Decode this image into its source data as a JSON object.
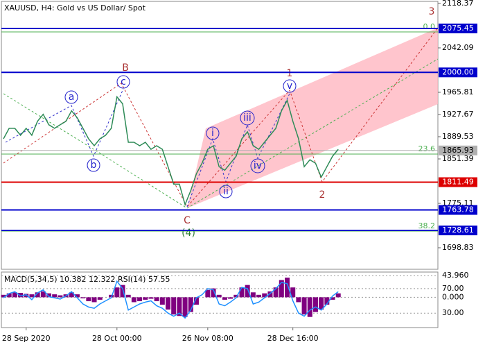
{
  "chart_data": {
    "type": "line",
    "title": "XAUUSD, H4:  Gold vs US Dollar/ Spot",
    "categories": [
      null,
      null,
      null,
      null,
      "28 Sep 2020",
      null,
      null,
      null,
      null,
      null,
      null,
      null,
      null,
      null,
      null,
      null,
      null,
      null,
      null,
      null,
      "28 Oct 00:00",
      null,
      null,
      null,
      null,
      null,
      null,
      null,
      null,
      null,
      null,
      null,
      null,
      null,
      null,
      null,
      "26 Nov 08:00",
      null,
      null,
      null,
      null,
      null,
      null,
      null,
      null,
      null,
      null,
      null,
      null,
      null,
      null,
      "28 Dec 16:00",
      null,
      null,
      null,
      null,
      null,
      null,
      null,
      null
    ],
    "values": [
      1886,
      1904,
      1904,
      1892,
      1904,
      1892,
      1916,
      1928,
      1910,
      1904,
      1910,
      1916,
      1934,
      1922,
      1904,
      1886,
      1874,
      1886,
      1892,
      1904,
      1958,
      1946,
      1880,
      1880,
      1874,
      1880,
      1868,
      1874,
      1868,
      1838,
      1808,
      1808,
      1773,
      1797,
      1826,
      1844,
      1868,
      1874,
      1838,
      1832,
      1844,
      1856,
      1886,
      1898,
      1874,
      1868,
      1880,
      1892,
      1904,
      1934,
      1952,
      1916,
      1886,
      1838,
      1850,
      1844,
      1820,
      1838,
      1856,
      1868
    ],
    "color": "#2e8b57",
    "ylim": [
      1661.9,
      2124.3
    ],
    "yticks": [
      2118.37,
      2042.09,
      1965.81,
      1927.67,
      1889.53,
      1851.39,
      1775.11,
      1698.83
    ],
    "levels": [
      {
        "value": 2075.45,
        "color": "#0000cc"
      },
      {
        "value": 2000,
        "label": "2000.00",
        "color": "#0000cc"
      },
      {
        "value": 1865.93,
        "color": "#b0b0b0"
      },
      {
        "value": 1811.49,
        "color": "#dd0000"
      },
      {
        "value": 1763.78,
        "color": "#0000cc"
      },
      {
        "value": 1728.61,
        "color": "#0000cc"
      }
    ],
    "fib_levels": [
      {
        "name": "0.0",
        "value": 2069.5
      },
      {
        "name": "23.6",
        "value": 1859.7
      },
      {
        "name": "38.2",
        "value": 1727.4
      }
    ],
    "fib_color": "#4caf50",
    "wave_labels": [
      "a",
      "b",
      "c",
      "B",
      "i",
      "ii",
      "iii",
      "iv",
      "v",
      "1",
      "2",
      "3",
      "C",
      "(4)"
    ],
    "indicator": {
      "title": "MACD(5,34,5) 10.382 12.322 RSI(14) 57.55",
      "histogram": [
        5,
        8,
        10,
        9,
        7,
        6,
        10,
        12,
        8,
        6,
        4,
        6,
        10,
        6,
        -2,
        -8,
        -10,
        -5,
        0,
        5,
        20,
        25,
        5,
        -10,
        -8,
        -5,
        -3,
        -8,
        -15,
        -25,
        -35,
        -38,
        -40,
        -30,
        -15,
        0,
        15,
        18,
        5,
        -5,
        -3,
        5,
        20,
        25,
        10,
        5,
        8,
        12,
        20,
        35,
        40,
        20,
        -10,
        -35,
        -40,
        -30,
        -25,
        -15,
        -5,
        8
      ],
      "histogram_color": "#800080",
      "ylim": [
        -61.6,
        51.3
      ],
      "yticks": [
        {
          "value": 43.96,
          "label": "43.960"
        },
        {
          "value": 0,
          "label": "0.000"
        }
      ],
      "rsi": [
        55,
        62,
        65,
        58,
        60,
        52,
        63,
        68,
        57,
        55,
        53,
        58,
        65,
        55,
        45,
        40,
        38,
        45,
        50,
        55,
        82,
        70,
        35,
        40,
        45,
        48,
        50,
        42,
        38,
        30,
        25,
        30,
        22,
        35,
        55,
        60,
        70,
        68,
        45,
        42,
        48,
        55,
        72,
        70,
        45,
        48,
        55,
        62,
        70,
        80,
        78,
        50,
        30,
        25,
        35,
        40,
        35,
        45,
        58,
        65
      ],
      "rsi_color": "#1e90ff",
      "rsi_ylim": [
        6.5,
        97
      ],
      "rsi_yticks": [
        {
          "value": 70,
          "label": "70.00"
        },
        {
          "value": 30,
          "label": "30.00"
        }
      ]
    }
  }
}
